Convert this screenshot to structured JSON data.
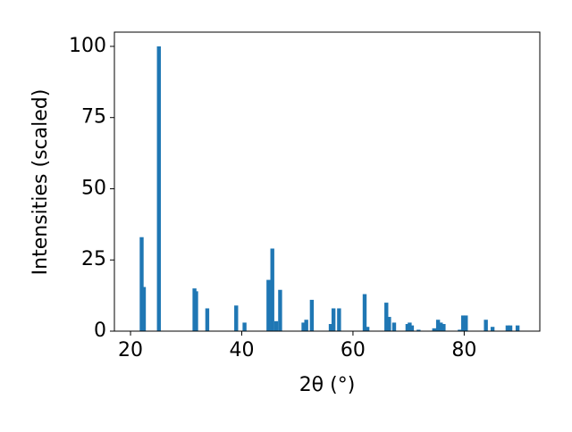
{
  "chart_data": {
    "type": "bar",
    "x_label": "2θ (°)",
    "y_label": "Intensities (scaled)",
    "color": "#1f77b4",
    "x": [
      22.0,
      22.4,
      25.1,
      31.5,
      31.8,
      33.8,
      39.0,
      40.5,
      44.8,
      45.5,
      46.2,
      46.9,
      51.1,
      51.6,
      52.6,
      56.0,
      56.5,
      57.5,
      62.1,
      62.6,
      66.0,
      66.5,
      67.4,
      69.8,
      70.2,
      70.6,
      71.8,
      74.6,
      75.3,
      75.8,
      76.3,
      79.2,
      79.8,
      80.3,
      83.9,
      85.1,
      87.8,
      88.3,
      89.6
    ],
    "values": [
      33,
      15.5,
      100,
      15,
      14,
      8,
      9,
      3,
      18,
      29,
      3.5,
      14.5,
      3,
      4,
      11,
      2.5,
      8,
      8,
      13,
      1.5,
      10,
      5,
      3,
      2.5,
      3,
      2,
      0.5,
      1,
      4,
      3,
      2.5,
      0.5,
      5.5,
      5.5,
      4,
      1.5,
      2,
      2,
      2
    ],
    "xlim": [
      17.1,
      93.6
    ],
    "ylim": [
      0,
      105
    ],
    "xticks": [
      20,
      40,
      60,
      80
    ],
    "yticks": [
      0,
      25,
      50,
      75,
      100
    ]
  }
}
